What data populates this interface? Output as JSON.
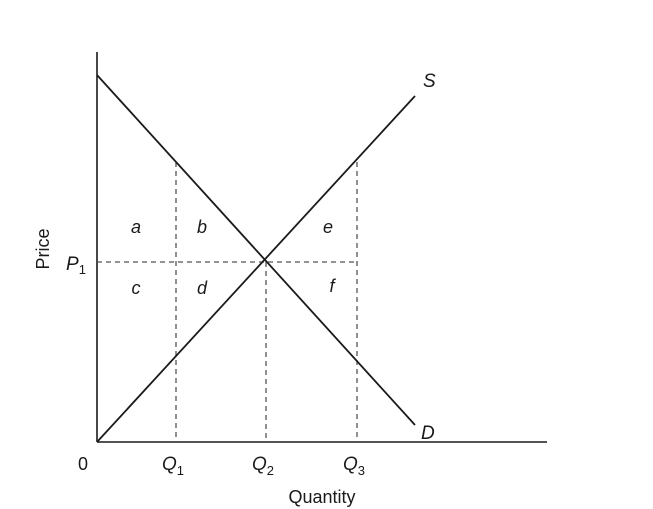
{
  "axes": {
    "x_label": "Quantity",
    "y_label": "Price",
    "origin_label": "0"
  },
  "curves": {
    "supply_label": "S",
    "demand_label": "D"
  },
  "price_levels": [
    {
      "base": "P",
      "sub": "1"
    }
  ],
  "quantity_levels": [
    {
      "base": "Q",
      "sub": "1"
    },
    {
      "base": "Q",
      "sub": "2"
    },
    {
      "base": "Q",
      "sub": "3"
    }
  ],
  "regions": [
    "a",
    "b",
    "c",
    "d",
    "e",
    "f"
  ],
  "colors": {
    "line": "#1a1a1a",
    "dashed": "#555555",
    "background": "#ffffff"
  }
}
